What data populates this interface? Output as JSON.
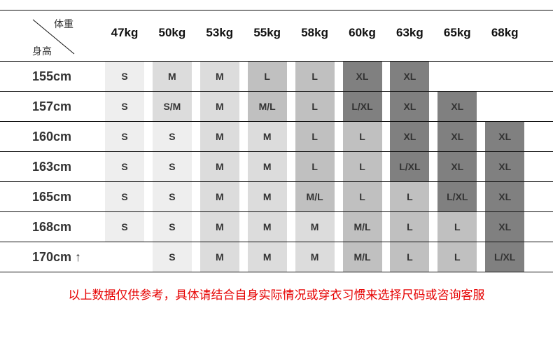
{
  "corner": {
    "weight_label": "体重",
    "height_label": "身高"
  },
  "weights": [
    "47kg",
    "50kg",
    "53kg",
    "55kg",
    "58kg",
    "60kg",
    "63kg",
    "65kg",
    "68kg"
  ],
  "rows": [
    {
      "height": "155cm",
      "sizes": [
        "S",
        "M",
        "M",
        "L",
        "L",
        "XL",
        "XL",
        "",
        ""
      ]
    },
    {
      "height": "157cm",
      "sizes": [
        "S",
        "S/M",
        "M",
        "M/L",
        "L",
        "L/XL",
        "XL",
        "XL",
        ""
      ]
    },
    {
      "height": "160cm",
      "sizes": [
        "S",
        "S",
        "M",
        "M",
        "L",
        "L",
        "XL",
        "XL",
        "XL"
      ]
    },
    {
      "height": "163cm",
      "sizes": [
        "S",
        "S",
        "M",
        "M",
        "L",
        "L",
        "L/XL",
        "XL",
        "XL"
      ]
    },
    {
      "height": "165cm",
      "sizes": [
        "S",
        "S",
        "M",
        "M",
        "M/L",
        "L",
        "L",
        "L/XL",
        "XL"
      ]
    },
    {
      "height": "168cm",
      "sizes": [
        "S",
        "S",
        "M",
        "M",
        "M",
        "M/L",
        "L",
        "L",
        "XL"
      ]
    },
    {
      "height": "170cm ↑",
      "sizes": [
        "",
        "S",
        "M",
        "M",
        "M",
        "M/L",
        "L",
        "L",
        "L/XL"
      ]
    }
  ],
  "size_colors": {
    "S": "#eeeeee",
    "S/M": "#dcdcdc",
    "M": "#dcdcdc",
    "M/L": "#c0c0c0",
    "L": "#c0c0c0",
    "L/XL": "#808080",
    "XL": "#808080"
  },
  "footer_note": "以上数据仅供参考，具体请结合自身实际情况或穿衣习惯来选择尺码或咨询客服",
  "footer_color": "#e60000"
}
